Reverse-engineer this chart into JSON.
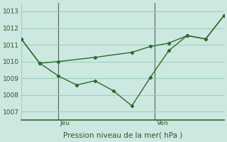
{
  "bg_color": "#cce8e0",
  "grid_color": "#99ccbb",
  "line_color": "#2d6a2d",
  "title": "Pression niveau de la mer( hPa )",
  "ylim": [
    1006.5,
    1013.5
  ],
  "yticks": [
    1007,
    1008,
    1009,
    1010,
    1011,
    1012,
    1013
  ],
  "xlim": [
    0,
    22
  ],
  "jeu_x": 4.0,
  "ven_x": 14.5,
  "line1_x": [
    0,
    2,
    4,
    6,
    8,
    10,
    12,
    14,
    16,
    18,
    20,
    22
  ],
  "line1_y": [
    1011.35,
    1009.9,
    1009.15,
    1008.6,
    1008.85,
    1008.25,
    1007.35,
    1009.05,
    1010.65,
    1011.55,
    1011.35,
    1012.75
  ],
  "line2_x": [
    0,
    2,
    4,
    8,
    12,
    14,
    16,
    18,
    20,
    22
  ],
  "line2_y": [
    1011.35,
    1009.9,
    1010.0,
    1010.25,
    1010.55,
    1010.9,
    1011.1,
    1011.55,
    1011.35,
    1012.75
  ]
}
